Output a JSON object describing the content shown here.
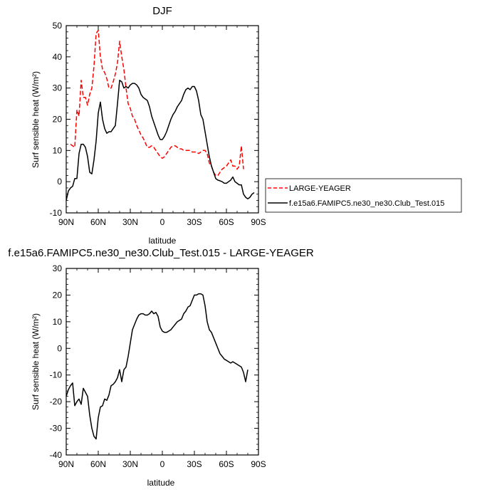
{
  "chart_data": [
    {
      "type": "line",
      "title": "DJF",
      "xlabel": "latitude",
      "ylabel": "Surf sensible heat (W/m²)",
      "xlim": [
        90,
        -90
      ],
      "ylim": [
        -10,
        50
      ],
      "x_ticks": [
        90,
        60,
        30,
        0,
        -30,
        -60,
        -90
      ],
      "x_tick_labels": [
        "90N",
        "60N",
        "30N",
        "0",
        "30S",
        "60S",
        "90S"
      ],
      "y_ticks": [
        -10,
        0,
        10,
        20,
        30,
        40,
        50
      ],
      "y_tick_labels": [
        "-10",
        "0",
        "10",
        "20",
        "30",
        "40",
        "50"
      ],
      "legend_position": "right",
      "series": [
        {
          "name": "LARGE-YEAGER",
          "color": "#ff0000",
          "dash": "dashed",
          "points": [
            [
              86,
              12
            ],
            [
              82,
              11
            ],
            [
              80,
              23
            ],
            [
              78,
              21
            ],
            [
              76,
              32.5
            ],
            [
              74,
              27
            ],
            [
              72,
              27
            ],
            [
              70,
              24.5
            ],
            [
              68,
              28
            ],
            [
              66,
              30
            ],
            [
              64,
              37
            ],
            [
              62,
              47.5
            ],
            [
              60,
              48.5
            ],
            [
              58,
              40
            ],
            [
              56,
              36
            ],
            [
              54,
              35
            ],
            [
              52,
              33
            ],
            [
              50,
              30
            ],
            [
              48,
              30
            ],
            [
              46,
              32
            ],
            [
              44,
              34.5
            ],
            [
              42,
              38
            ],
            [
              40,
              45
            ],
            [
              38,
              40
            ],
            [
              36,
              36
            ],
            [
              34,
              30
            ],
            [
              32,
              25
            ],
            [
              30,
              23.5
            ],
            [
              28,
              21
            ],
            [
              26,
              20
            ],
            [
              24,
              18
            ],
            [
              22,
              16.5
            ],
            [
              20,
              15
            ],
            [
              18,
              14
            ],
            [
              16,
              12.5
            ],
            [
              14,
              11
            ],
            [
              12,
              11
            ],
            [
              10,
              11.5
            ],
            [
              8,
              11
            ],
            [
              6,
              10
            ],
            [
              4,
              9
            ],
            [
              2,
              8
            ],
            [
              0,
              7.5
            ],
            [
              -2,
              8
            ],
            [
              -4,
              9
            ],
            [
              -6,
              10
            ],
            [
              -8,
              11
            ],
            [
              -10,
              11.5
            ],
            [
              -12,
              11.5
            ],
            [
              -14,
              11
            ],
            [
              -16,
              10.5
            ],
            [
              -18,
              10.5
            ],
            [
              -20,
              10
            ],
            [
              -22,
              10
            ],
            [
              -24,
              10
            ],
            [
              -26,
              10
            ],
            [
              -28,
              9.5
            ],
            [
              -30,
              9.5
            ],
            [
              -32,
              9.5
            ],
            [
              -34,
              9
            ],
            [
              -36,
              9.5
            ],
            [
              -38,
              10
            ],
            [
              -40,
              10
            ],
            [
              -42,
              9
            ],
            [
              -44,
              6
            ],
            [
              -46,
              5
            ],
            [
              -48,
              3
            ],
            [
              -50,
              2
            ],
            [
              -52,
              2
            ],
            [
              -54,
              3
            ],
            [
              -56,
              4
            ],
            [
              -58,
              4.5
            ],
            [
              -60,
              5
            ],
            [
              -62,
              6
            ],
            [
              -64,
              7
            ],
            [
              -66,
              5
            ],
            [
              -68,
              5
            ],
            [
              -70,
              4
            ],
            [
              -72,
              5
            ],
            [
              -74,
              11.5
            ],
            [
              -76,
              4
            ]
          ]
        },
        {
          "name": "f.e15a6.FAMIPC5.ne30_ne30.Club_Test.015",
          "color": "#000000",
          "dash": "solid",
          "points": [
            [
              90,
              -6
            ],
            [
              88,
              -3
            ],
            [
              86,
              -2
            ],
            [
              84,
              -1.5
            ],
            [
              82,
              1
            ],
            [
              80,
              1
            ],
            [
              78,
              9
            ],
            [
              76,
              12
            ],
            [
              74,
              12
            ],
            [
              72,
              11
            ],
            [
              70,
              8
            ],
            [
              68,
              3
            ],
            [
              66,
              2.5
            ],
            [
              64,
              7
            ],
            [
              62,
              13
            ],
            [
              60,
              22
            ],
            [
              58,
              25.5
            ],
            [
              56,
              20
            ],
            [
              54,
              17
            ],
            [
              52,
              15.5
            ],
            [
              50,
              16
            ],
            [
              48,
              16
            ],
            [
              46,
              17
            ],
            [
              44,
              18
            ],
            [
              42,
              25
            ],
            [
              40,
              32.5
            ],
            [
              38,
              32
            ],
            [
              36,
              30
            ],
            [
              34,
              30.5
            ],
            [
              32,
              30
            ],
            [
              30,
              31
            ],
            [
              28,
              31.5
            ],
            [
              26,
              31.5
            ],
            [
              24,
              31
            ],
            [
              22,
              30
            ],
            [
              20,
              28
            ],
            [
              18,
              27
            ],
            [
              16,
              26.5
            ],
            [
              14,
              26
            ],
            [
              12,
              24
            ],
            [
              10,
              21
            ],
            [
              8,
              19
            ],
            [
              6,
              17
            ],
            [
              4,
              15
            ],
            [
              2,
              13.5
            ],
            [
              0,
              13.5
            ],
            [
              -2,
              14.5
            ],
            [
              -4,
              16
            ],
            [
              -6,
              18
            ],
            [
              -8,
              20
            ],
            [
              -10,
              21.5
            ],
            [
              -12,
              22.5
            ],
            [
              -14,
              24
            ],
            [
              -16,
              25
            ],
            [
              -18,
              26
            ],
            [
              -20,
              28
            ],
            [
              -22,
              29.5
            ],
            [
              -24,
              30
            ],
            [
              -26,
              29.5
            ],
            [
              -28,
              30.5
            ],
            [
              -30,
              30.5
            ],
            [
              -32,
              29
            ],
            [
              -34,
              26
            ],
            [
              -36,
              21.5
            ],
            [
              -38,
              20
            ],
            [
              -40,
              16
            ],
            [
              -42,
              12
            ],
            [
              -44,
              8
            ],
            [
              -46,
              5
            ],
            [
              -48,
              3
            ],
            [
              -50,
              1
            ],
            [
              -52,
              0.5
            ],
            [
              -54,
              0.3
            ],
            [
              -56,
              0
            ],
            [
              -58,
              -0.5
            ],
            [
              -60,
              -0.5
            ],
            [
              -62,
              0
            ],
            [
              -64,
              0.5
            ],
            [
              -66,
              1.5
            ],
            [
              -68,
              0
            ],
            [
              -70,
              -0.5
            ],
            [
              -72,
              -1
            ],
            [
              -74,
              -1
            ],
            [
              -76,
              -4
            ],
            [
              -78,
              -5
            ],
            [
              -80,
              -5.5
            ],
            [
              -82,
              -5
            ],
            [
              -84,
              -4
            ],
            [
              -86,
              -3.5
            ]
          ]
        }
      ]
    },
    {
      "type": "line",
      "title": "f.e15a6.FAMIPC5.ne30_ne30.Club_Test.015 - LARGE-YEAGER",
      "xlabel": "latitude",
      "ylabel": "Surf sensible heat (W/m²)",
      "xlim": [
        90,
        -90
      ],
      "ylim": [
        -40,
        30
      ],
      "x_ticks": [
        90,
        60,
        30,
        0,
        -30,
        -60,
        -90
      ],
      "x_tick_labels": [
        "90N",
        "60N",
        "30N",
        "0",
        "30S",
        "60S",
        "90S"
      ],
      "y_ticks": [
        -40,
        -30,
        -20,
        -10,
        0,
        10,
        20,
        30
      ],
      "y_tick_labels": [
        "-40",
        "-30",
        "-20",
        "-10",
        "0",
        "10",
        "20",
        "30"
      ],
      "series": [
        {
          "color": "#000000",
          "dash": "solid",
          "points": [
            [
              90,
              -18
            ],
            [
              88,
              -15.5
            ],
            [
              86,
              -14
            ],
            [
              84,
              -13
            ],
            [
              82,
              -21.5
            ],
            [
              80,
              -20
            ],
            [
              78,
              -19
            ],
            [
              76,
              -21
            ],
            [
              74,
              -15
            ],
            [
              72,
              -16.5
            ],
            [
              70,
              -18
            ],
            [
              68,
              -25
            ],
            [
              66,
              -30
            ],
            [
              64,
              -33
            ],
            [
              62,
              -34
            ],
            [
              60,
              -26
            ],
            [
              58,
              -22
            ],
            [
              56,
              -21.5
            ],
            [
              54,
              -19
            ],
            [
              52,
              -19.5
            ],
            [
              50,
              -17.5
            ],
            [
              48,
              -14
            ],
            [
              46,
              -13.5
            ],
            [
              44,
              -12.5
            ],
            [
              42,
              -11
            ],
            [
              40,
              -8
            ],
            [
              38,
              -12.5
            ],
            [
              36,
              -8
            ],
            [
              34,
              -7
            ],
            [
              32,
              -3
            ],
            [
              30,
              2
            ],
            [
              28,
              7
            ],
            [
              26,
              9
            ],
            [
              24,
              11
            ],
            [
              22,
              12.5
            ],
            [
              20,
              13
            ],
            [
              18,
              13
            ],
            [
              16,
              12.5
            ],
            [
              14,
              12.5
            ],
            [
              12,
              13
            ],
            [
              10,
              14
            ],
            [
              8,
              13
            ],
            [
              6,
              13.5
            ],
            [
              4,
              12
            ],
            [
              2,
              8
            ],
            [
              0,
              6.5
            ],
            [
              -2,
              6
            ],
            [
              -4,
              6
            ],
            [
              -6,
              6.5
            ],
            [
              -8,
              7
            ],
            [
              -10,
              8
            ],
            [
              -12,
              9
            ],
            [
              -14,
              10
            ],
            [
              -16,
              10.5
            ],
            [
              -18,
              11
            ],
            [
              -20,
              13
            ],
            [
              -22,
              14
            ],
            [
              -24,
              15.5
            ],
            [
              -26,
              16
            ],
            [
              -28,
              18
            ],
            [
              -30,
              20
            ],
            [
              -32,
              20
            ],
            [
              -34,
              20.5
            ],
            [
              -36,
              20.5
            ],
            [
              -38,
              20
            ],
            [
              -40,
              16
            ],
            [
              -42,
              10
            ],
            [
              -44,
              7
            ],
            [
              -46,
              6
            ],
            [
              -48,
              4
            ],
            [
              -50,
              2
            ],
            [
              -52,
              0
            ],
            [
              -54,
              -2
            ],
            [
              -56,
              -3
            ],
            [
              -58,
              -4
            ],
            [
              -60,
              -4.5
            ],
            [
              -62,
              -5
            ],
            [
              -64,
              -5.5
            ],
            [
              -66,
              -5
            ],
            [
              -68,
              -5.5
            ],
            [
              -70,
              -6
            ],
            [
              -72,
              -6.5
            ],
            [
              -74,
              -7
            ],
            [
              -76,
              -9
            ],
            [
              -78,
              -12.5
            ],
            [
              -80,
              -8
            ]
          ]
        }
      ]
    }
  ]
}
